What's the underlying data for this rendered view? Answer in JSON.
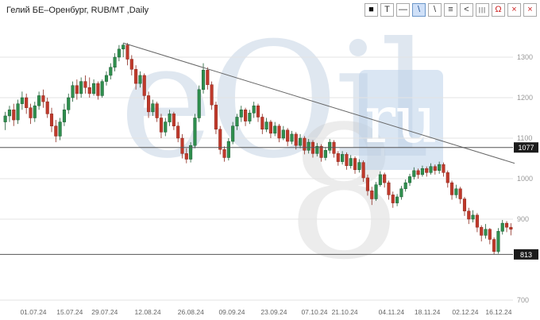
{
  "header": {
    "title": "Гелий БЕ–Оренбург, RUB/MT ,Daily"
  },
  "toolbar": {
    "icons": [
      {
        "name": "color-swatch-icon",
        "glyph": "■",
        "color": "#111111"
      },
      {
        "name": "text-tool-icon",
        "glyph": "T",
        "color": "#333333"
      },
      {
        "name": "horizontal-line-tool-icon",
        "glyph": "—",
        "color": "#333333"
      },
      {
        "name": "trendline-tool-icon",
        "glyph": "\\",
        "color": "#1c4f93",
        "active": true
      },
      {
        "name": "ray-tool-icon",
        "glyph": "\\",
        "color": "#333333"
      },
      {
        "name": "levels-tool-icon",
        "glyph": "≡",
        "color": "#333333"
      },
      {
        "name": "angle-tool-icon",
        "glyph": "<",
        "color": "#333333"
      },
      {
        "name": "bars-tool-icon",
        "glyph": "|||",
        "color": "#333333",
        "cls": "bars"
      },
      {
        "name": "magnet-tool-icon",
        "glyph": "Ω",
        "color": "#cc2222"
      },
      {
        "name": "delete-object-icon",
        "glyph": "×",
        "color": "#cc2222"
      },
      {
        "name": "delete-all-icon",
        "glyph": "×",
        "color": "#cc2222"
      }
    ]
  },
  "watermark": {
    "left_text": "eOil",
    "right_text": "ru",
    "glyph": "8"
  },
  "chart_data": {
    "type": "candlestick",
    "title": "Гелий БЕ–Оренбург, RUB/MT ,Daily",
    "instrument": "Гелий БЕ–Оренбург",
    "units": "RUB/MT",
    "timeframe": "Daily",
    "ylim": [
      700,
      1350
    ],
    "y_ticks": [
      1300,
      1200,
      1100,
      1000,
      900,
      700
    ],
    "grid_prices": [
      1300,
      1200,
      1100,
      1000,
      900,
      700
    ],
    "levels": [
      {
        "value": 1077
      },
      {
        "value": 813
      }
    ],
    "trendline": {
      "start_index": 28,
      "start_price": 1335,
      "end_price": 1038
    },
    "colors": {
      "up": "#2f8f4e",
      "up_dark": "#1c5c33",
      "down": "#c0392b",
      "down_dark": "#8c2a1f"
    },
    "x_labels": [
      {
        "text": "01.07.24",
        "pos": 0.065
      },
      {
        "text": "15.07.24",
        "pos": 0.136
      },
      {
        "text": "29.07.24",
        "pos": 0.204
      },
      {
        "text": "12.08.24",
        "pos": 0.288
      },
      {
        "text": "26.08.24",
        "pos": 0.372
      },
      {
        "text": "09.09.24",
        "pos": 0.452
      },
      {
        "text": "23.09.24",
        "pos": 0.534
      },
      {
        "text": "07.10.24",
        "pos": 0.613
      },
      {
        "text": "21.10.24",
        "pos": 0.672
      },
      {
        "text": "04.11.24",
        "pos": 0.763
      },
      {
        "text": "18.11.24",
        "pos": 0.833
      },
      {
        "text": "02.12.24",
        "pos": 0.907
      },
      {
        "text": "16.12.24",
        "pos": 0.972
      }
    ],
    "candles": [
      [
        1140,
        1165,
        1120,
        1155
      ],
      [
        1155,
        1180,
        1140,
        1170
      ],
      [
        1170,
        1185,
        1130,
        1145
      ],
      [
        1145,
        1195,
        1135,
        1185
      ],
      [
        1185,
        1215,
        1170,
        1200
      ],
      [
        1200,
        1210,
        1160,
        1175
      ],
      [
        1175,
        1185,
        1135,
        1150
      ],
      [
        1150,
        1190,
        1140,
        1180
      ],
      [
        1180,
        1215,
        1170,
        1205
      ],
      [
        1205,
        1220,
        1175,
        1190
      ],
      [
        1190,
        1200,
        1150,
        1160
      ],
      [
        1160,
        1175,
        1115,
        1130
      ],
      [
        1130,
        1145,
        1090,
        1105
      ],
      [
        1105,
        1150,
        1095,
        1140
      ],
      [
        1140,
        1185,
        1130,
        1170
      ],
      [
        1170,
        1210,
        1160,
        1200
      ],
      [
        1200,
        1240,
        1190,
        1230
      ],
      [
        1230,
        1245,
        1195,
        1210
      ],
      [
        1210,
        1250,
        1200,
        1240
      ],
      [
        1240,
        1255,
        1210,
        1225
      ],
      [
        1225,
        1250,
        1200,
        1210
      ],
      [
        1210,
        1245,
        1205,
        1235
      ],
      [
        1235,
        1240,
        1195,
        1205
      ],
      [
        1205,
        1245,
        1200,
        1240
      ],
      [
        1240,
        1265,
        1230,
        1255
      ],
      [
        1255,
        1285,
        1245,
        1275
      ],
      [
        1275,
        1310,
        1265,
        1300
      ],
      [
        1300,
        1330,
        1290,
        1320
      ],
      [
        1320,
        1335,
        1300,
        1330
      ],
      [
        1330,
        1335,
        1280,
        1295
      ],
      [
        1295,
        1305,
        1255,
        1270
      ],
      [
        1270,
        1280,
        1220,
        1235
      ],
      [
        1235,
        1265,
        1225,
        1255
      ],
      [
        1255,
        1260,
        1195,
        1205
      ],
      [
        1205,
        1215,
        1150,
        1165
      ],
      [
        1165,
        1195,
        1155,
        1185
      ],
      [
        1185,
        1190,
        1140,
        1150
      ],
      [
        1150,
        1160,
        1100,
        1115
      ],
      [
        1115,
        1150,
        1105,
        1140
      ],
      [
        1140,
        1170,
        1130,
        1160
      ],
      [
        1160,
        1165,
        1120,
        1130
      ],
      [
        1130,
        1140,
        1090,
        1100
      ],
      [
        1100,
        1110,
        1050,
        1062
      ],
      [
        1062,
        1075,
        1038,
        1048
      ],
      [
        1048,
        1090,
        1040,
        1082
      ],
      [
        1082,
        1160,
        1075,
        1150
      ],
      [
        1150,
        1230,
        1140,
        1220
      ],
      [
        1220,
        1285,
        1210,
        1268
      ],
      [
        1268,
        1275,
        1220,
        1232
      ],
      [
        1232,
        1240,
        1170,
        1182
      ],
      [
        1182,
        1190,
        1110,
        1122
      ],
      [
        1122,
        1130,
        1060,
        1072
      ],
      [
        1072,
        1080,
        1042,
        1052
      ],
      [
        1052,
        1100,
        1045,
        1092
      ],
      [
        1092,
        1140,
        1085,
        1130
      ],
      [
        1130,
        1160,
        1120,
        1152
      ],
      [
        1152,
        1180,
        1140,
        1170
      ],
      [
        1170,
        1175,
        1130,
        1142
      ],
      [
        1142,
        1170,
        1135,
        1162
      ],
      [
        1162,
        1190,
        1150,
        1180
      ],
      [
        1180,
        1185,
        1140,
        1152
      ],
      [
        1152,
        1160,
        1110,
        1122
      ],
      [
        1122,
        1150,
        1115,
        1140
      ],
      [
        1140,
        1145,
        1100,
        1112
      ],
      [
        1112,
        1140,
        1105,
        1130
      ],
      [
        1130,
        1135,
        1090,
        1100
      ],
      [
        1100,
        1130,
        1095,
        1120
      ],
      [
        1120,
        1125,
        1080,
        1092
      ],
      [
        1092,
        1118,
        1085,
        1110
      ],
      [
        1110,
        1115,
        1072,
        1082
      ],
      [
        1082,
        1110,
        1075,
        1100
      ],
      [
        1100,
        1105,
        1060,
        1070
      ],
      [
        1070,
        1098,
        1062,
        1090
      ],
      [
        1090,
        1095,
        1052,
        1062
      ],
      [
        1062,
        1088,
        1055,
        1080
      ],
      [
        1080,
        1085,
        1042,
        1052
      ],
      [
        1052,
        1078,
        1045,
        1070
      ],
      [
        1070,
        1098,
        1062,
        1090
      ],
      [
        1090,
        1095,
        1052,
        1062
      ],
      [
        1062,
        1068,
        1032,
        1042
      ],
      [
        1042,
        1068,
        1035,
        1060
      ],
      [
        1060,
        1065,
        1022,
        1032
      ],
      [
        1032,
        1058,
        1025,
        1050
      ],
      [
        1050,
        1055,
        1012,
        1022
      ],
      [
        1022,
        1048,
        1015,
        1040
      ],
      [
        1040,
        1045,
        992,
        1002
      ],
      [
        1002,
        1010,
        958,
        970
      ],
      [
        970,
        980,
        935,
        950
      ],
      [
        950,
        992,
        945,
        985
      ],
      [
        985,
        1018,
        980,
        1010
      ],
      [
        1010,
        1015,
        978,
        990
      ],
      [
        990,
        995,
        948,
        960
      ],
      [
        960,
        968,
        928,
        940
      ],
      [
        940,
        962,
        932,
        955
      ],
      [
        955,
        982,
        948,
        975
      ],
      [
        975,
        998,
        968,
        990
      ],
      [
        990,
        1012,
        982,
        1005
      ],
      [
        1005,
        1028,
        998,
        1020
      ],
      [
        1020,
        1025,
        1000,
        1010
      ],
      [
        1010,
        1032,
        1005,
        1025
      ],
      [
        1025,
        1030,
        1005,
        1015
      ],
      [
        1015,
        1038,
        1010,
        1030
      ],
      [
        1030,
        1035,
        1010,
        1020
      ],
      [
        1020,
        1042,
        1012,
        1035
      ],
      [
        1035,
        1040,
        1005,
        1015
      ],
      [
        1015,
        1020,
        978,
        990
      ],
      [
        990,
        995,
        948,
        960
      ],
      [
        960,
        985,
        952,
        975
      ],
      [
        975,
        980,
        938,
        950
      ],
      [
        950,
        955,
        908,
        920
      ],
      [
        920,
        928,
        888,
        900
      ],
      [
        900,
        922,
        892,
        910
      ],
      [
        910,
        915,
        868,
        880
      ],
      [
        880,
        885,
        845,
        860
      ],
      [
        860,
        888,
        852,
        875
      ],
      [
        875,
        878,
        838,
        850
      ],
      [
        850,
        855,
        813,
        820
      ],
      [
        820,
        878,
        815,
        870
      ],
      [
        870,
        898,
        862,
        890
      ],
      [
        890,
        895,
        868,
        880
      ],
      [
        880,
        890,
        860,
        875
      ]
    ]
  }
}
